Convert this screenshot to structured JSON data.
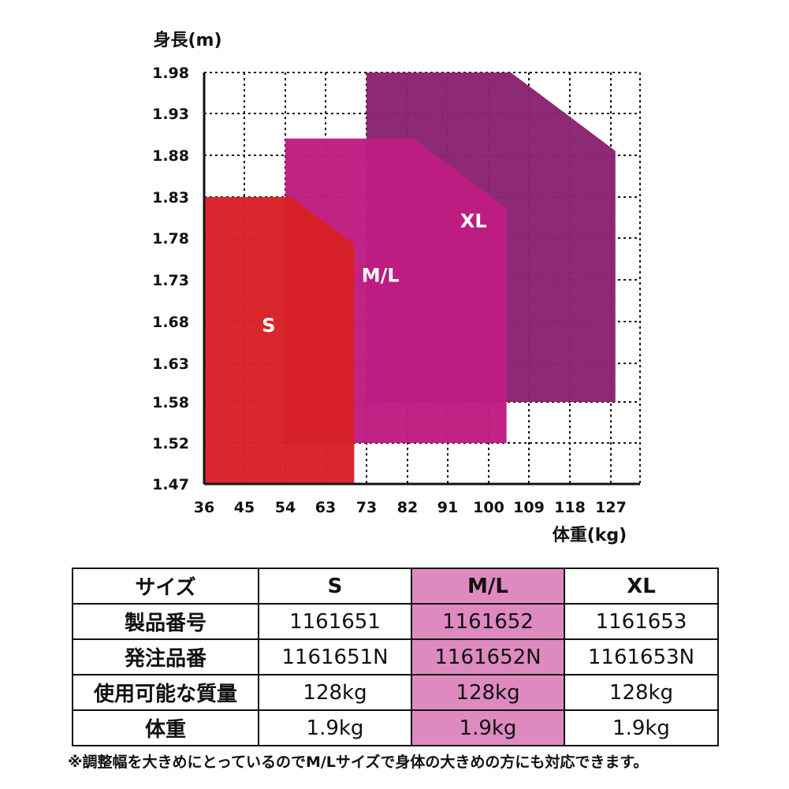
{
  "chart_data": {
    "type": "area",
    "ylabel": "身長(m)",
    "xlabel": "体重(kg)",
    "x_ticks": [
      "36",
      "45",
      "54",
      "63",
      "73",
      "82",
      "91",
      "100",
      "109",
      "118",
      "127"
    ],
    "y_ticks": [
      "1.98",
      "1.93",
      "1.88",
      "1.83",
      "1.78",
      "1.73",
      "1.68",
      "1.63",
      "1.58",
      "1.52",
      "1.47"
    ],
    "grid": true,
    "series": [
      {
        "name": "XL",
        "color": "#8a2371",
        "weight_range_kg": [
          73,
          128
        ],
        "height_range_m": [
          1.58,
          1.98
        ]
      },
      {
        "name": "M/L",
        "color": "#bf1c80",
        "weight_range_kg": [
          54,
          104
        ],
        "height_range_m": [
          1.52,
          1.9
        ]
      },
      {
        "name": "S",
        "color": "#d92027",
        "weight_range_kg": [
          36,
          70
        ],
        "height_range_m": [
          1.47,
          1.83
        ]
      }
    ]
  },
  "table": {
    "header": {
      "label": "サイズ",
      "sizes": [
        "S",
        "M/L",
        "XL"
      ]
    },
    "rows": [
      {
        "label": "製品番号",
        "values": [
          "1161651",
          "1161652",
          "1161653"
        ]
      },
      {
        "label": "発注品番",
        "values": [
          "1161651N",
          "1161652N",
          "1161653N"
        ]
      },
      {
        "label": "使用可能な質量",
        "values": [
          "128kg",
          "128kg",
          "128kg"
        ]
      },
      {
        "label": "体重",
        "values": [
          "1.9kg",
          "1.9kg",
          "1.9kg"
        ]
      }
    ]
  },
  "footnote": "※調整幅を大きめにとっているのでM/Lサイズで身体の大きめの方にも対応できます。"
}
